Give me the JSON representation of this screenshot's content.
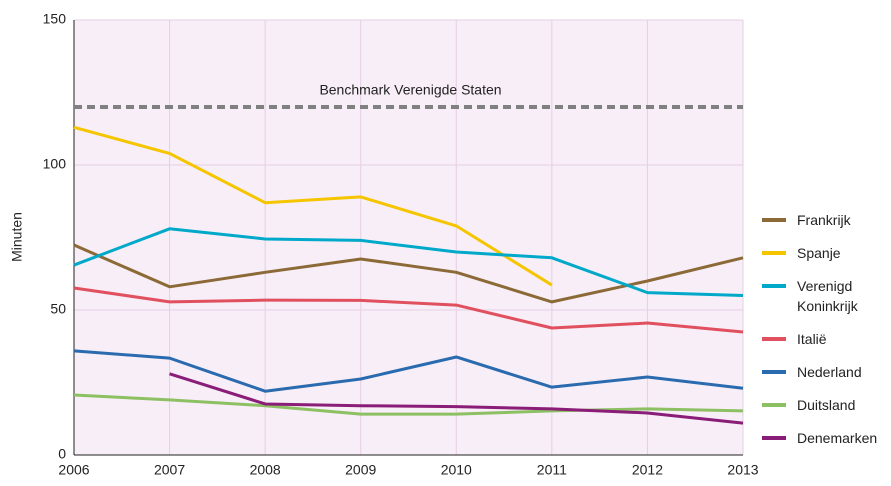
{
  "chart_data": {
    "type": "line",
    "y_label": "Minuten",
    "categories": [
      "2006",
      "2007",
      "2008",
      "2009",
      "2010",
      "2011",
      "2012",
      "2013"
    ],
    "series": [
      {
        "name": "Frankrijk",
        "color": "#8b6a37",
        "values": [
          72.4,
          58,
          63,
          67.6,
          63,
          52.8,
          60,
          68
        ]
      },
      {
        "name": "Spanje",
        "color": "#f5c500",
        "values": [
          113,
          104,
          87,
          89,
          79,
          58.6,
          null,
          null
        ]
      },
      {
        "name": "Verenigd Koninkrijk",
        "color": "#00a9c9",
        "values": [
          65.5,
          78,
          74.5,
          74,
          70,
          68,
          56,
          55
        ]
      },
      {
        "name": "Italië",
        "color": "#e0505f",
        "values": [
          57.6,
          52.8,
          53.4,
          53.3,
          51.7,
          43.8,
          45.5,
          42.4
        ]
      },
      {
        "name": "Nederland",
        "color": "#2a6bb0",
        "values": [
          35.9,
          33.4,
          22,
          26.2,
          33.8,
          23.4,
          26.9,
          23
        ]
      },
      {
        "name": "Duitsland",
        "color": "#8dc063",
        "values": [
          20.7,
          19,
          17,
          14.1,
          14.1,
          15.2,
          15.9,
          15.2
        ]
      },
      {
        "name": "Denemarken",
        "color": "#8a1d78",
        "values": [
          null,
          28,
          17.6,
          17,
          16.7,
          15.9,
          14.5,
          11
        ]
      }
    ],
    "annotations": [
      {
        "text": "Benchmark Verenigde Staten",
        "value": 120,
        "color": "#808080"
      }
    ],
    "ylim": [
      0,
      150
    ],
    "yticks": [
      0,
      50,
      100,
      150
    ],
    "grid": true
  }
}
